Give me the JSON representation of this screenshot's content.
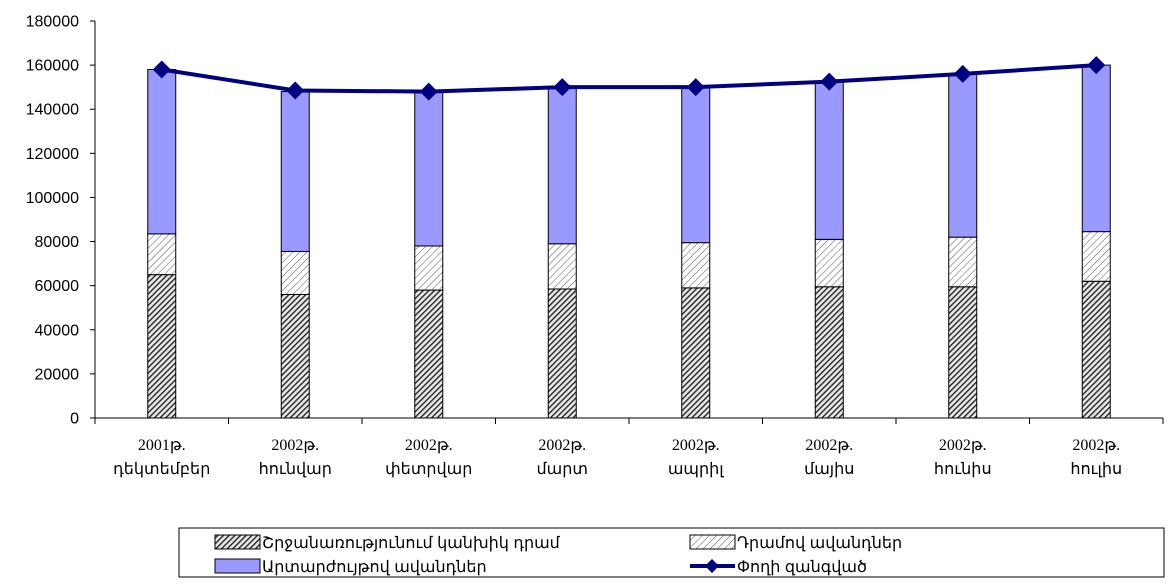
{
  "chart_data": {
    "type": "bar",
    "stacked": true,
    "categories": [
      [
        "2001թ.",
        "դեկտեմբեր"
      ],
      [
        "2002թ.",
        "հունվար"
      ],
      [
        "2002թ.",
        "փետրվար"
      ],
      [
        "2002թ.",
        "մարտ"
      ],
      [
        "2002թ.",
        "ապրիլ"
      ],
      [
        "2002թ.",
        "մայիս"
      ],
      [
        "2002թ.",
        "հունիս"
      ],
      [
        "2002թ.",
        "հուլիս"
      ]
    ],
    "series": [
      {
        "name": "Շրջանառությունում կանխիկ դրամ",
        "kind": "bar",
        "color": "#555555",
        "pattern": "dense-diagonal",
        "values": [
          65000,
          56000,
          58000,
          58500,
          59000,
          59500,
          59500,
          62000
        ]
      },
      {
        "name": "Դրամով ավանդներ",
        "kind": "bar",
        "color": "#ffffff",
        "pattern": "light-diagonal",
        "values": [
          18500,
          19500,
          20000,
          20500,
          20500,
          21500,
          22500,
          22500
        ]
      },
      {
        "name": "Արտարժույթով ավանդներ",
        "kind": "bar",
        "color": "#9999ff",
        "pattern": "solid",
        "values": [
          74500,
          72500,
          70000,
          71000,
          70500,
          71500,
          74000,
          75500
        ]
      },
      {
        "name": "Փողի զանգված",
        "kind": "line",
        "color": "#000080",
        "marker": "diamond",
        "values": [
          158000,
          148500,
          148000,
          150000,
          150000,
          152500,
          156000,
          160000
        ]
      }
    ],
    "yticks": [
      "0",
      "20000",
      "40000",
      "60000",
      "80000",
      "100000",
      "120000",
      "140000",
      "160000",
      "180000"
    ],
    "ylim": [
      0,
      180000
    ],
    "grid": false,
    "legend_position": "bottom"
  }
}
